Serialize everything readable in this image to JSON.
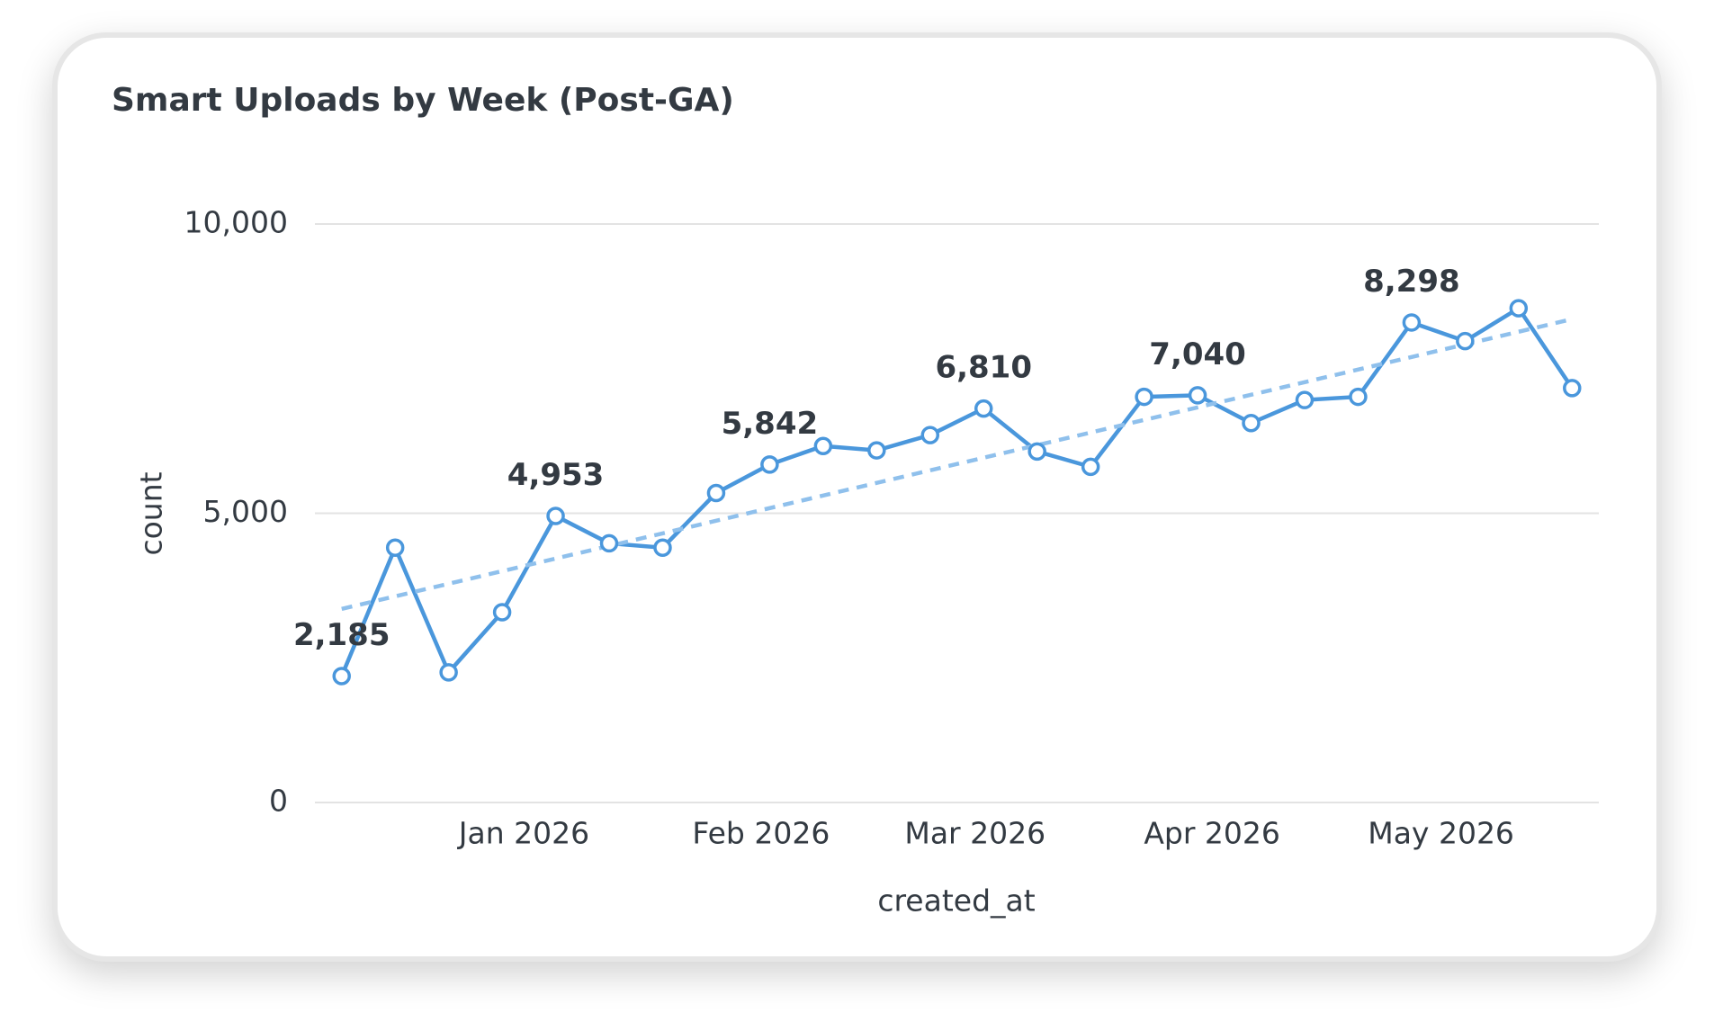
{
  "chart_data": {
    "type": "line",
    "title": "Smart Uploads by Week (Post-GA)",
    "x_label": "created_at",
    "y_label": "count",
    "categories": [
      null,
      null,
      null,
      null,
      null,
      null,
      null,
      null,
      null,
      null,
      null,
      null,
      null,
      null,
      null,
      null,
      null,
      null,
      null,
      null,
      null,
      null,
      null,
      null
    ],
    "xlim": [
      -0.5,
      23.5
    ],
    "xticks": [
      {
        "value": 3.41,
        "label": "Jan 2026"
      },
      {
        "value": 7.84,
        "label": "Feb 2026"
      },
      {
        "value": 11.84,
        "label": "Mar 2026"
      },
      {
        "value": 16.27,
        "label": "Apr 2026"
      },
      {
        "value": 20.55,
        "label": "May 2026"
      }
    ],
    "series": [
      {
        "color": "#4a97dc",
        "values": [
          2185,
          4405,
          2250,
          3289,
          4953,
          4480,
          4405,
          5350,
          5842,
          6163,
          6087,
          6352,
          6810,
          6068,
          5803,
          7013,
          7040,
          6560,
          6957,
          7013,
          8298,
          7977,
          8544,
          7164
        ],
        "value_labels": [
          "2,185",
          null,
          null,
          null,
          "4,953",
          null,
          null,
          null,
          "5,842",
          null,
          null,
          null,
          "6,810",
          null,
          null,
          null,
          "7,040",
          null,
          null,
          null,
          "8,298",
          null,
          null,
          null
        ]
      }
    ],
    "trendline": {
      "color": "#8fc0ec",
      "values": [
        3346,
        8355
      ]
    },
    "ylim": [
      0,
      10000
    ],
    "yticks": [
      0,
      {
        "value": 5000,
        "label": "5,000"
      },
      {
        "value": 10000,
        "label": "10,000"
      }
    ],
    "grid": true
  }
}
